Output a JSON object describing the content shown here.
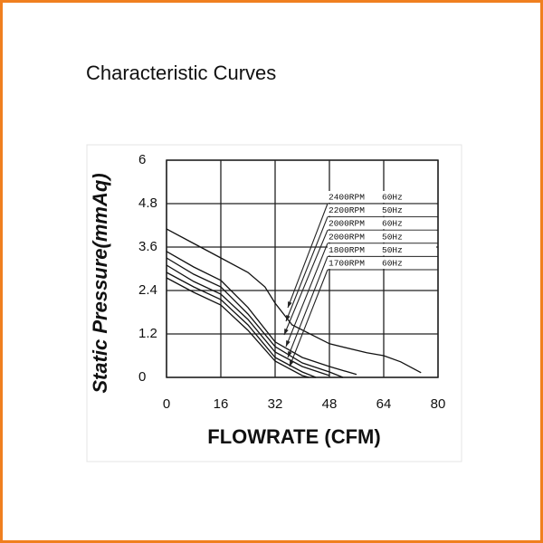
{
  "chart_data": {
    "type": "line",
    "title": "Characteristic Curves",
    "y_label": "Static Pressure(mmAq)",
    "x_label": "FLOWRATE (CFM)",
    "xlim": [
      0,
      80
    ],
    "xticks": [
      0,
      16,
      32,
      48,
      64,
      80
    ],
    "ylim": [
      0,
      6
    ],
    "yticks": [
      0,
      1.2,
      2.4,
      3.6,
      4.8,
      6
    ],
    "grid": true,
    "series": [
      {
        "name": "2400RPM",
        "freq": "60Hz",
        "color": "#111111",
        "x": [
          0,
          8,
          16,
          24,
          29,
          32,
          37,
          48,
          59,
          64,
          69,
          75
        ],
        "values": [
          4.1,
          3.7,
          3.3,
          2.9,
          2.5,
          2.05,
          1.45,
          0.93,
          0.68,
          0.6,
          0.43,
          0.13
        ]
      },
      {
        "name": "2200RPM",
        "freq": "50Hz",
        "color": "#111111",
        "x": [
          0,
          8,
          16,
          24,
          32,
          40,
          48,
          56
        ],
        "values": [
          3.48,
          3.05,
          2.68,
          1.93,
          0.98,
          0.55,
          0.3,
          0.08
        ]
      },
      {
        "name": "2000RPM",
        "freq": "60Hz",
        "color": "#111111",
        "x": [
          0,
          8,
          16,
          24,
          32,
          40,
          48,
          52
        ],
        "values": [
          3.3,
          2.85,
          2.5,
          1.75,
          0.85,
          0.4,
          0.15,
          0
        ]
      },
      {
        "name": "2000RPM",
        "freq": "50Hz",
        "color": "#111111",
        "x": [
          0,
          8,
          16,
          24,
          32,
          40,
          48
        ],
        "values": [
          3.1,
          2.65,
          2.3,
          1.6,
          0.7,
          0.3,
          0.05
        ]
      },
      {
        "name": "1800RPM",
        "freq": "50Hz",
        "color": "#111111",
        "x": [
          0,
          8,
          16,
          24,
          32,
          40,
          44
        ],
        "values": [
          2.9,
          2.5,
          2.15,
          1.45,
          0.55,
          0.15,
          0
        ]
      },
      {
        "name": "1700RPM",
        "freq": "60Hz",
        "color": "#111111",
        "x": [
          0,
          8,
          16,
          24,
          32,
          40,
          42
        ],
        "values": [
          2.75,
          2.35,
          2.0,
          1.3,
          0.45,
          0.05,
          0
        ]
      }
    ]
  }
}
